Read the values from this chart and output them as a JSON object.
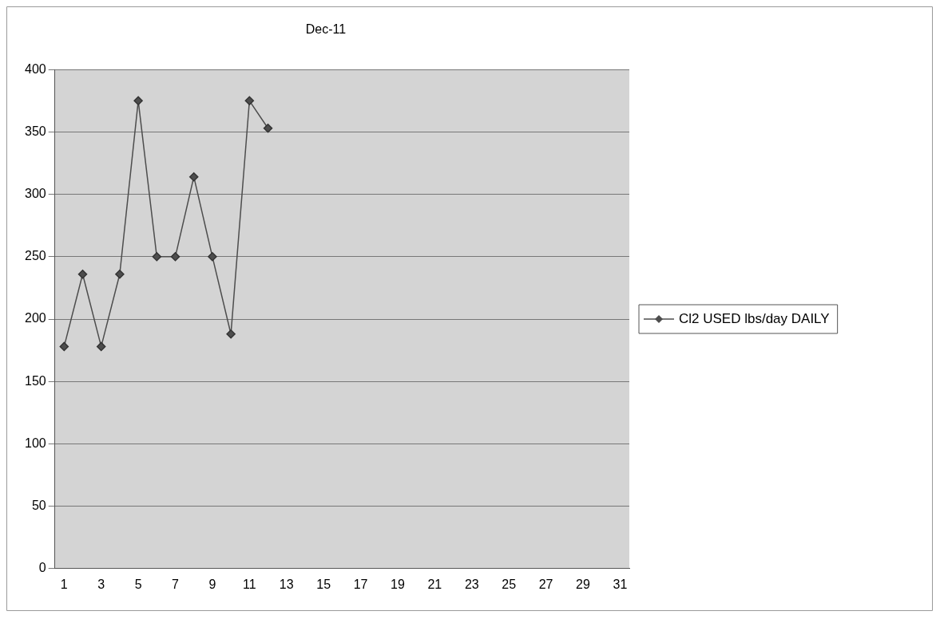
{
  "chart_data": {
    "type": "line",
    "title": "Dec-11",
    "x": [
      1,
      2,
      3,
      4,
      5,
      6,
      7,
      8,
      9,
      10,
      11,
      12
    ],
    "series": [
      {
        "name": "Cl2 USED lbs/day DAILY",
        "color": "#4d4d4d",
        "values": [
          178,
          236,
          178,
          236,
          375,
          250,
          250,
          314,
          250,
          188,
          375,
          353
        ]
      }
    ],
    "xlim": [
      0.5,
      31.5
    ],
    "xticks": [
      1,
      3,
      5,
      7,
      9,
      11,
      13,
      15,
      17,
      19,
      21,
      23,
      25,
      27,
      29,
      31
    ],
    "ylim": [
      0,
      400
    ],
    "yticks": [
      0,
      50,
      100,
      150,
      200,
      250,
      300,
      350,
      400
    ],
    "grid": "y",
    "legend": "right",
    "marker": "diamond",
    "line_style": "solid"
  }
}
